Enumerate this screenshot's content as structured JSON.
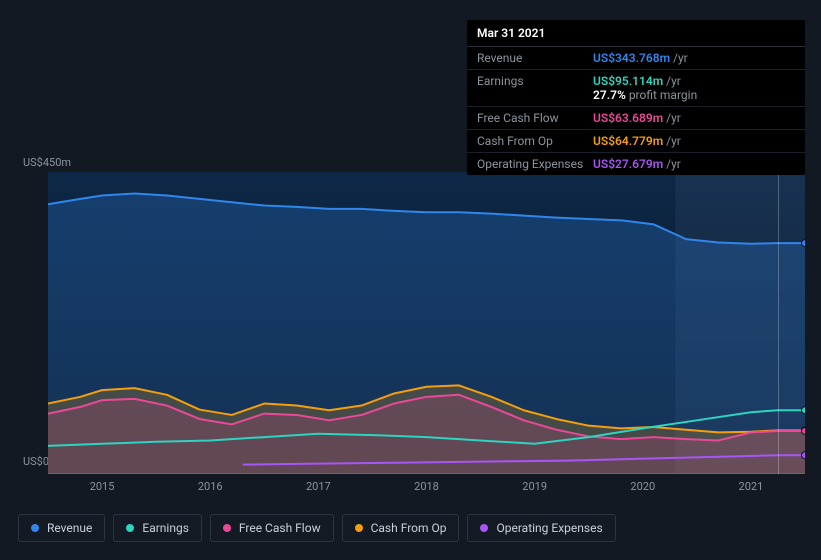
{
  "tooltip": {
    "date": "Mar 31 2021",
    "rows": [
      {
        "label": "Revenue",
        "value": "US$343.768m",
        "suffix": "/yr",
        "color": "#2f86eb"
      },
      {
        "label": "Earnings",
        "value": "US$95.114m",
        "suffix": "/yr",
        "color": "#2dd4bf",
        "margin_pct": "27.7%",
        "margin_text": "profit margin"
      },
      {
        "label": "Free Cash Flow",
        "value": "US$63.689m",
        "suffix": "/yr",
        "color": "#ec4899"
      },
      {
        "label": "Cash From Op",
        "value": "US$64.779m",
        "suffix": "/yr",
        "color": "#f59e0b"
      },
      {
        "label": "Operating Expenses",
        "value": "US$27.679m",
        "suffix": "/yr",
        "color": "#a855f7"
      }
    ]
  },
  "chart": {
    "type": "area",
    "background_color": "#131923",
    "plot_bg_gradient_top": "#0d2847",
    "plot_bg_gradient_bottom": "#0a1320",
    "y_top_label": "US$450m",
    "y_bottom_label": "US$0",
    "y_max": 450,
    "y_min": 0,
    "x_years": [
      "2015",
      "2016",
      "2017",
      "2018",
      "2019",
      "2020",
      "2021"
    ],
    "x_start": 2014.5,
    "x_end": 2021.5,
    "hover_x": 2021.25,
    "future_shade_from": 2020.3,
    "series": [
      {
        "name": "Revenue",
        "color": "#2f86eb",
        "fill_opacity": 0.25,
        "points": [
          [
            2014.5,
            402
          ],
          [
            2014.8,
            410
          ],
          [
            2015.0,
            415
          ],
          [
            2015.3,
            418
          ],
          [
            2015.6,
            415
          ],
          [
            2015.9,
            410
          ],
          [
            2016.2,
            405
          ],
          [
            2016.5,
            400
          ],
          [
            2016.8,
            398
          ],
          [
            2017.1,
            395
          ],
          [
            2017.4,
            395
          ],
          [
            2017.7,
            392
          ],
          [
            2018.0,
            390
          ],
          [
            2018.3,
            390
          ],
          [
            2018.6,
            388
          ],
          [
            2018.9,
            385
          ],
          [
            2019.2,
            382
          ],
          [
            2019.5,
            380
          ],
          [
            2019.8,
            378
          ],
          [
            2020.1,
            372
          ],
          [
            2020.4,
            350
          ],
          [
            2020.7,
            345
          ],
          [
            2021.0,
            343
          ],
          [
            2021.25,
            344
          ],
          [
            2021.5,
            344
          ]
        ]
      },
      {
        "name": "Cash From Op",
        "color": "#f59e0b",
        "fill_opacity": 0.22,
        "points": [
          [
            2014.5,
            105
          ],
          [
            2014.8,
            115
          ],
          [
            2015.0,
            125
          ],
          [
            2015.3,
            128
          ],
          [
            2015.6,
            118
          ],
          [
            2015.9,
            96
          ],
          [
            2016.2,
            88
          ],
          [
            2016.5,
            105
          ],
          [
            2016.8,
            102
          ],
          [
            2017.1,
            95
          ],
          [
            2017.4,
            102
          ],
          [
            2017.7,
            120
          ],
          [
            2018.0,
            130
          ],
          [
            2018.3,
            132
          ],
          [
            2018.6,
            115
          ],
          [
            2018.9,
            95
          ],
          [
            2019.2,
            82
          ],
          [
            2019.5,
            72
          ],
          [
            2019.8,
            68
          ],
          [
            2020.1,
            70
          ],
          [
            2020.4,
            66
          ],
          [
            2020.7,
            62
          ],
          [
            2021.0,
            63
          ],
          [
            2021.25,
            65
          ],
          [
            2021.5,
            65
          ]
        ]
      },
      {
        "name": "Free Cash Flow",
        "color": "#ec4899",
        "fill_opacity": 0.18,
        "points": [
          [
            2014.5,
            90
          ],
          [
            2014.8,
            100
          ],
          [
            2015.0,
            110
          ],
          [
            2015.3,
            112
          ],
          [
            2015.6,
            102
          ],
          [
            2015.9,
            82
          ],
          [
            2016.2,
            74
          ],
          [
            2016.5,
            90
          ],
          [
            2016.8,
            88
          ],
          [
            2017.1,
            80
          ],
          [
            2017.4,
            88
          ],
          [
            2017.7,
            105
          ],
          [
            2018.0,
            115
          ],
          [
            2018.3,
            118
          ],
          [
            2018.6,
            100
          ],
          [
            2018.9,
            80
          ],
          [
            2019.2,
            66
          ],
          [
            2019.5,
            56
          ],
          [
            2019.8,
            52
          ],
          [
            2020.1,
            55
          ],
          [
            2020.4,
            52
          ],
          [
            2020.7,
            50
          ],
          [
            2021.0,
            62
          ],
          [
            2021.25,
            64
          ],
          [
            2021.5,
            64
          ]
        ]
      },
      {
        "name": "Earnings",
        "color": "#2dd4bf",
        "fill_opacity": 0.0,
        "line_only": true,
        "points": [
          [
            2014.5,
            42
          ],
          [
            2015.0,
            45
          ],
          [
            2015.5,
            48
          ],
          [
            2016.0,
            50
          ],
          [
            2016.5,
            55
          ],
          [
            2017.0,
            60
          ],
          [
            2017.5,
            58
          ],
          [
            2018.0,
            55
          ],
          [
            2018.5,
            50
          ],
          [
            2019.0,
            45
          ],
          [
            2019.5,
            55
          ],
          [
            2020.0,
            68
          ],
          [
            2020.5,
            80
          ],
          [
            2021.0,
            92
          ],
          [
            2021.25,
            95
          ],
          [
            2021.5,
            95
          ]
        ]
      },
      {
        "name": "Operating Expenses",
        "color": "#a855f7",
        "fill_opacity": 0.0,
        "line_only": true,
        "points": [
          [
            2016.3,
            14
          ],
          [
            2016.8,
            15
          ],
          [
            2017.3,
            16
          ],
          [
            2017.8,
            17
          ],
          [
            2018.3,
            18
          ],
          [
            2018.8,
            19
          ],
          [
            2019.3,
            20
          ],
          [
            2019.8,
            22
          ],
          [
            2020.3,
            24
          ],
          [
            2020.8,
            26
          ],
          [
            2021.25,
            28
          ],
          [
            2021.5,
            28
          ]
        ]
      }
    ],
    "legend": [
      {
        "label": "Revenue",
        "color": "#2f86eb"
      },
      {
        "label": "Earnings",
        "color": "#2dd4bf"
      },
      {
        "label": "Free Cash Flow",
        "color": "#ec4899"
      },
      {
        "label": "Cash From Op",
        "color": "#f59e0b"
      },
      {
        "label": "Operating Expenses",
        "color": "#a855f7"
      }
    ]
  }
}
